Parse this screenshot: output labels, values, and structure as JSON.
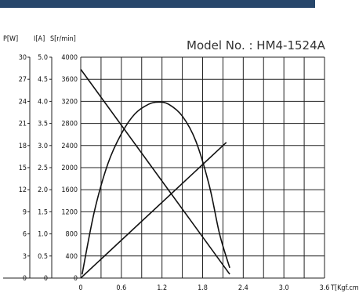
{
  "header_bar_color": "#27466b",
  "chart_data": {
    "type": "line",
    "title": "Model No. : HM4-1524A",
    "axis_headers": {
      "p": "P[W]",
      "i": "I[A]",
      "s": "S[r/min]",
      "t": "T[Kgf.cm]"
    },
    "x": {
      "label": "T[Kgf.cm]",
      "range": [
        0,
        3.6
      ],
      "ticks": [
        "0",
        "0.6",
        "1.2",
        "1.8",
        "2.4",
        "3.0",
        "3.6"
      ]
    },
    "y_axes": [
      {
        "label": "P[W]",
        "range": [
          0,
          30
        ],
        "ticks": [
          "0",
          "3",
          "6",
          "9",
          "12",
          "15",
          "18",
          "21",
          "24",
          "27",
          "30"
        ]
      },
      {
        "label": "I[A]",
        "range": [
          0,
          5.0
        ],
        "ticks": [
          "0",
          "0.5",
          "1.0",
          "1.5",
          "2.0",
          "2.5",
          "3.0",
          "3.5",
          "4.0",
          "4.5",
          "5.0"
        ]
      },
      {
        "label": "S[r/min]",
        "range": [
          0,
          4000
        ],
        "ticks": [
          "0",
          "400",
          "800",
          "1200",
          "1600",
          "2000",
          "2400",
          "2800",
          "3200",
          "3600",
          "4000"
        ]
      }
    ],
    "grid": true,
    "series": [
      {
        "axis": "S[r/min]",
        "x": [
          0,
          2.2
        ],
        "y": [
          3780,
          70
        ]
      },
      {
        "axis": "I[A]",
        "x": [
          0,
          2.15
        ],
        "y": [
          0,
          3.07
        ]
      },
      {
        "axis": "P[W]",
        "x": [
          0.02,
          0.2,
          0.4,
          0.6,
          0.8,
          1.0,
          1.15,
          1.3,
          1.5,
          1.7,
          1.9,
          2.05,
          2.2
        ],
        "y": [
          0.5,
          9.0,
          15.5,
          19.6,
          22.3,
          23.6,
          23.9,
          23.6,
          22.0,
          18.6,
          12.5,
          6.0,
          1.4
        ]
      }
    ]
  }
}
